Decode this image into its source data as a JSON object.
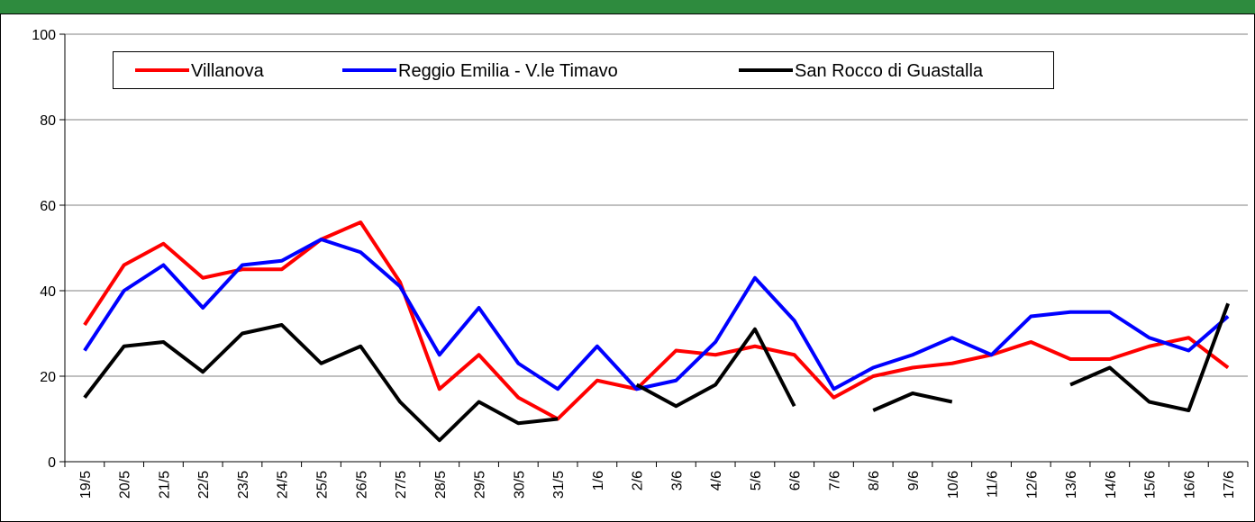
{
  "chart_data": {
    "type": "line",
    "categories": [
      "19/5",
      "20/5",
      "21/5",
      "22/5",
      "23/5",
      "24/5",
      "25/5",
      "26/5",
      "27/5",
      "28/5",
      "29/5",
      "30/5",
      "31/5",
      "1/6",
      "2/6",
      "3/6",
      "4/6",
      "5/6",
      "6/6",
      "7/6",
      "8/6",
      "9/6",
      "10/6",
      "11/6",
      "12/6",
      "13/6",
      "14/6",
      "15/6",
      "16/6",
      "17/6"
    ],
    "series": [
      {
        "name": "Villanova",
        "color": "#ff0000",
        "values": [
          32,
          46,
          51,
          43,
          45,
          45,
          52,
          56,
          42,
          17,
          25,
          15,
          10,
          19,
          17,
          26,
          25,
          27,
          25,
          15,
          20,
          22,
          23,
          25,
          28,
          24,
          24,
          27,
          29,
          22
        ]
      },
      {
        "name": "Reggio Emilia - V.le Timavo",
        "color": "#0000ff",
        "values": [
          26,
          40,
          46,
          36,
          46,
          47,
          52,
          49,
          41,
          25,
          36,
          23,
          17,
          27,
          17,
          19,
          28,
          43,
          33,
          17,
          22,
          25,
          29,
          25,
          34,
          35,
          35,
          29,
          26,
          34
        ]
      },
      {
        "name": "San Rocco di Guastalla",
        "color": "#000000",
        "values": [
          15,
          27,
          28,
          21,
          30,
          32,
          23,
          27,
          14,
          5,
          14,
          9,
          10,
          null,
          18,
          13,
          18,
          31,
          13,
          null,
          12,
          16,
          14,
          null,
          null,
          18,
          22,
          14,
          12,
          37
        ]
      }
    ],
    "ylim": [
      0,
      100
    ],
    "yticks": [
      0,
      20,
      40,
      60,
      80,
      100
    ],
    "grid": true
  }
}
